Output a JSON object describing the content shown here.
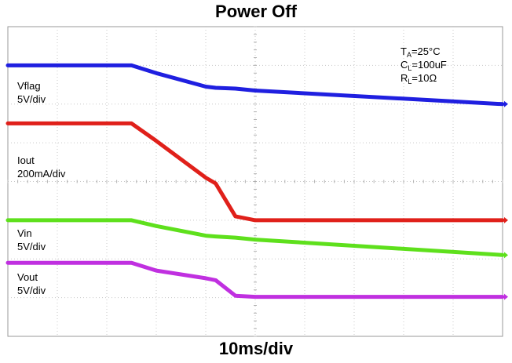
{
  "chart_data": {
    "type": "line",
    "title": "Power Off",
    "xlabel": "10ms/div",
    "ylabel": "",
    "grid": true,
    "divisions": {
      "x": 10,
      "y": 8
    },
    "conditions": {
      "ta": {
        "symbol": "T",
        "sub": "A",
        "value": "=25°C"
      },
      "cl": {
        "symbol": "C",
        "sub": "L",
        "value": "=100uF"
      },
      "rl": {
        "symbol": "R",
        "sub": "L",
        "value": "=10Ω"
      }
    },
    "x": [
      0,
      2.5,
      3.0,
      4.0,
      4.2,
      4.6,
      5.0,
      10.0
    ],
    "series": [
      {
        "name": "Vflag",
        "scale": "5V/div",
        "color": "#1f1fe0",
        "y": [
          7.0,
          7.0,
          6.8,
          6.45,
          6.42,
          6.4,
          6.35,
          6.0
        ]
      },
      {
        "name": "Iout",
        "scale": "200mA/div",
        "color": "#e0201a",
        "y": [
          5.5,
          5.5,
          5.05,
          4.1,
          3.95,
          3.1,
          3.0,
          3.0
        ]
      },
      {
        "name": "Vin",
        "scale": "5V/div",
        "color": "#5ee01c",
        "y": [
          3.0,
          3.0,
          2.85,
          2.6,
          2.58,
          2.55,
          2.5,
          2.1
        ]
      },
      {
        "name": "Vout",
        "scale": "5V/div",
        "color": "#c030e0",
        "y": [
          1.9,
          1.9,
          1.7,
          1.5,
          1.45,
          1.05,
          1.02,
          1.02
        ]
      }
    ]
  }
}
